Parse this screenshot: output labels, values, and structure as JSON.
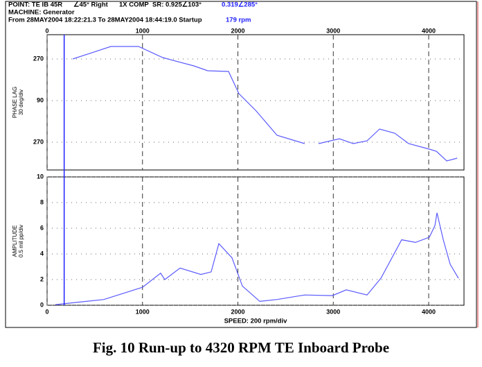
{
  "header": {
    "point": "POINT: TE IB 45R",
    "orientation": "∠45° Right",
    "mode": "1X COMP",
    "sr": "SR: 0.925∠103°",
    "reading": "0.319∠285°",
    "machine": "MACHINE: Generator",
    "range": "From 28MAY2004 18:22:21.3 To 28MAY2004 18:44:19.0 Startup",
    "cursor_label": "179 rpm",
    "cursor_rpm": 179
  },
  "caption": "Fig. 10 Run-up to 4320 RPM TE Inboard Probe",
  "chart_data": [
    {
      "type": "line",
      "y_label": "PHASE LAG",
      "y_sublabel": "30 deg/div",
      "color": "#5a5aff",
      "xlim": [
        0,
        4370
      ],
      "xticks": [
        0,
        1000,
        2000,
        3000,
        4000
      ],
      "ylim": [
        750,
        165
      ],
      "yticks": [
        270,
        {
          "value": 450,
          "label": "90"
        },
        {
          "value": 630,
          "label": "270"
        }
      ],
      "x": [
        269,
        668,
        958,
        1212,
        1539,
        1684,
        1902,
        2011,
        2192,
        2410,
        2700,
        null,
        2846,
        3064,
        3209,
        3354,
        3485,
        3644,
        3790,
        4007,
        4080,
        4189,
        4298
      ],
      "values": [
        270,
        216,
        216,
        264,
        300,
        321,
        324,
        420,
        495,
        600,
        636,
        null,
        636,
        615,
        636,
        624,
        573,
        591,
        636,
        660,
        669,
        711,
        699
      ]
    },
    {
      "type": "line",
      "y_label": "AMPLITUDE",
      "y_sublabel": "0.5 mil pp/div",
      "x_label": "SPEED: 200 rpm/div",
      "color": "#5a5aff",
      "xlim": [
        0,
        4370
      ],
      "xticks": [
        0,
        1000,
        2000,
        3000,
        4000
      ],
      "ylim": [
        0,
        10
      ],
      "yticks": [
        0,
        2,
        4,
        6,
        8,
        10
      ],
      "x": [
        87,
        595,
        1000,
        1190,
        1234,
        1394,
        1612,
        1720,
        1800,
        1938,
        2047,
        2229,
        2410,
        2700,
        2991,
        3136,
        3354,
        3499,
        3717,
        3862,
        4007,
        4065,
        4087,
        4153,
        4225,
        4312
      ],
      "values": [
        0.05,
        0.45,
        1.4,
        2.5,
        2.0,
        2.9,
        2.4,
        2.6,
        4.8,
        3.7,
        1.5,
        0.3,
        0.45,
        0.8,
        0.75,
        1.2,
        0.8,
        2.1,
        5.1,
        4.9,
        5.3,
        6.2,
        7.2,
        5.1,
        3.2,
        2.1
      ]
    }
  ]
}
